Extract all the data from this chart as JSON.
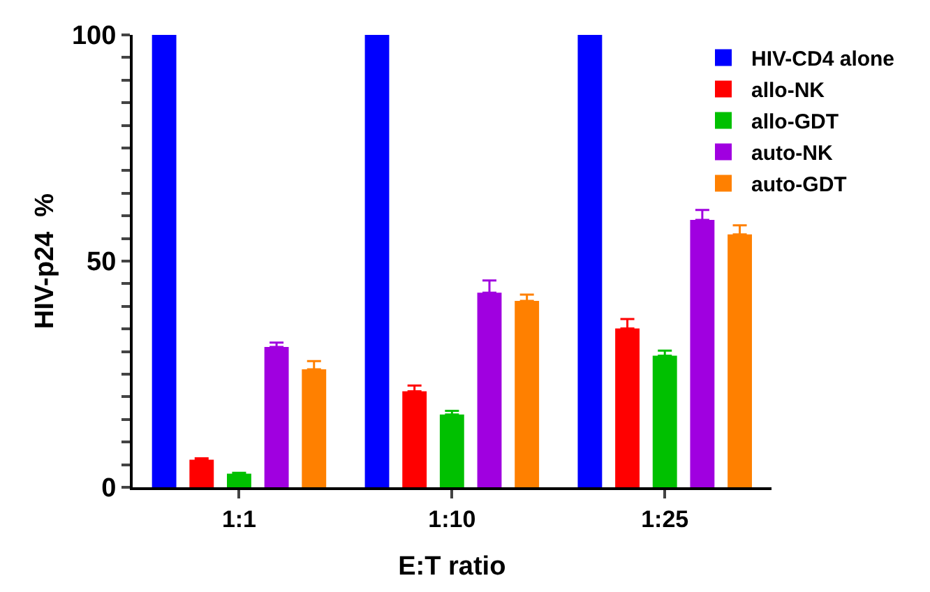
{
  "chart_data": {
    "type": "bar",
    "xlabel": "E:T ratio",
    "ylabel": "HIV-p24  %",
    "categories": [
      "1:1",
      "1:10",
      "1:25"
    ],
    "series": [
      {
        "name": "HIV-CD4 alone",
        "color": "#0000ff",
        "values": [
          100,
          100,
          100
        ]
      },
      {
        "name": "allo-NK",
        "color": "#ff0000",
        "values": [
          6.1,
          21.2,
          35.1
        ],
        "errors": [
          [
            6.1,
            6.4
          ],
          [
            21.2,
            22.5
          ],
          [
            35.1,
            37.2
          ]
        ]
      },
      {
        "name": "allo-GDT",
        "color": "#00c000",
        "values": [
          3.0,
          16.1,
          29.1
        ],
        "errors": [
          [
            3.0,
            3.2
          ],
          [
            16.1,
            16.9
          ],
          [
            29.1,
            30.2
          ]
        ]
      },
      {
        "name": "auto-NK",
        "color": "#a000e0",
        "values": [
          31.0,
          43.0,
          59.1
        ],
        "errors": [
          [
            31.0,
            32.0
          ],
          [
            43.0,
            45.7
          ],
          [
            59.1,
            61.3
          ]
        ]
      },
      {
        "name": "auto-GDT",
        "color": "#ff8000",
        "values": [
          26.1,
          41.2,
          55.9
        ],
        "errors": [
          [
            26.1,
            27.9
          ],
          [
            41.2,
            42.6
          ],
          [
            55.9,
            57.9
          ]
        ]
      }
    ],
    "ylim": [
      0,
      100
    ],
    "yticks": [
      0,
      {
        "value": 5,
        "label": null
      },
      {
        "value": 10,
        "label": null
      },
      {
        "value": 15,
        "label": null
      },
      {
        "value": 20,
        "label": null
      },
      {
        "value": 25,
        "label": null
      },
      {
        "value": 30,
        "label": null
      },
      {
        "value": 35,
        "label": null
      },
      {
        "value": 40,
        "label": null
      },
      {
        "value": 45,
        "label": null
      },
      50,
      {
        "value": 55,
        "label": null
      },
      {
        "value": 60,
        "label": null
      },
      {
        "value": 65,
        "label": null
      },
      {
        "value": 70,
        "label": null
      },
      {
        "value": 75,
        "label": null
      },
      {
        "value": 80,
        "label": null
      },
      {
        "value": 85,
        "label": null
      },
      {
        "value": 90,
        "label": null
      },
      {
        "value": 95,
        "label": null
      },
      100
    ],
    "legend": "top right"
  }
}
